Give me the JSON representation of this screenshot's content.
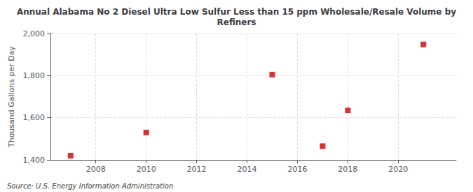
{
  "chart_data": {
    "type": "scatter",
    "title": "Annual Alabama No 2 Diesel Ultra Low Sulfur Less than 15 ppm Wholesale/Resale Volume by\nRefiners",
    "ylabel": "Thousand Gallons per Day",
    "annotations": [
      "Source: U.S. Energy Information Administration"
    ],
    "x": [
      2007,
      2010,
      2015,
      2017,
      2018,
      2021
    ],
    "values": [
      1420,
      1530,
      1805,
      1465,
      1635,
      1948
    ],
    "color": "#cc0000",
    "marker": "square",
    "xlim": [
      2006.2,
      2022.3
    ],
    "xticks": [
      2008,
      2010,
      2012,
      2014,
      2016,
      2018,
      2020
    ],
    "ylim": [
      1400,
      2000
    ],
    "yticks": [
      {
        "value": 1400,
        "label": "1,400"
      },
      {
        "value": 1600,
        "label": "1,600"
      },
      {
        "value": 1800,
        "label": "1,800"
      },
      {
        "value": 2000,
        "label": "2,000"
      }
    ],
    "grid": true
  }
}
